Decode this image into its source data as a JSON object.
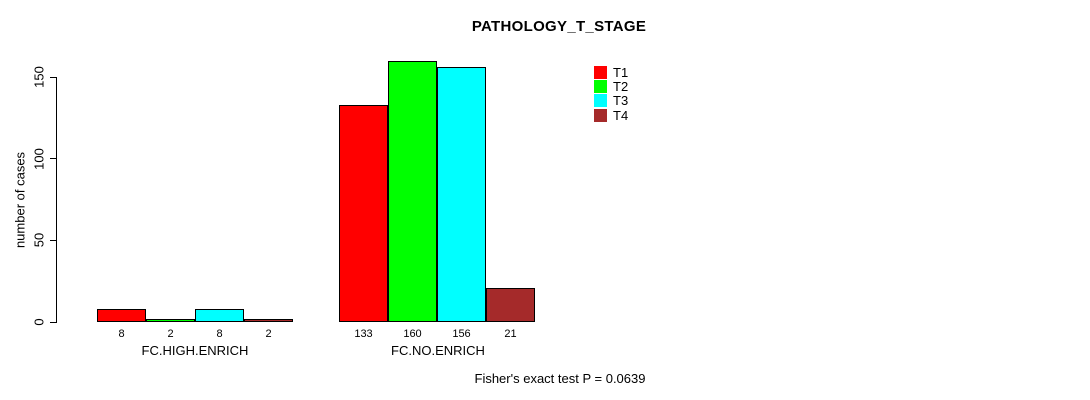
{
  "chart_data": {
    "type": "bar",
    "title": "PATHOLOGY_T_STAGE",
    "ylabel": "number of cases",
    "xlabel": "",
    "categories": [
      "FC.HIGH.ENRICH",
      "FC.NO.ENRICH"
    ],
    "series": [
      {
        "name": "T1",
        "color": "#FF0000",
        "values": [
          8,
          133
        ]
      },
      {
        "name": "T2",
        "color": "#00FF00",
        "values": [
          2,
          160
        ]
      },
      {
        "name": "T3",
        "color": "#00FFFF",
        "values": [
          8,
          156
        ]
      },
      {
        "name": "T4",
        "color": "#A52A2A",
        "values": [
          2,
          21
        ]
      }
    ],
    "yticks": [
      0,
      50,
      100,
      150
    ],
    "ylim": [
      0,
      160
    ],
    "grid": false,
    "legend_position": "top-right",
    "bar_value_labels_shown": true,
    "annotation": "Fisher's exact test P = 0.0639"
  }
}
